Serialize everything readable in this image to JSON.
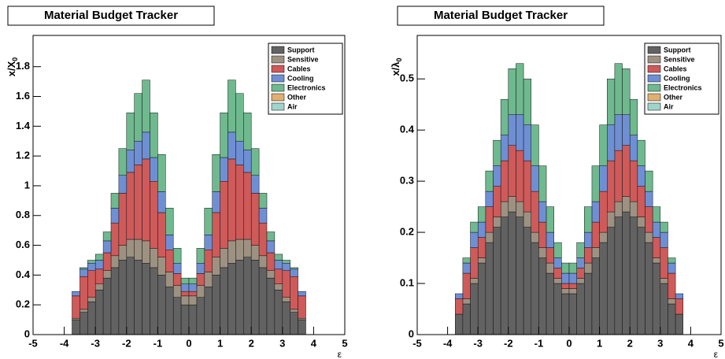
{
  "chart_data": [
    {
      "type": "histogram",
      "title": "Material Budget Tracker",
      "ylabel": "x/X",
      "ylabel_sub": "0",
      "xlabel": "ε",
      "bins": [
        -5,
        -4.75,
        -4.5,
        -4.25,
        -4,
        -3.75,
        -3.5,
        -3.25,
        -3,
        -2.75,
        -2.5,
        -2.25,
        -2,
        -1.75,
        -1.5,
        -1.25,
        -1,
        -0.75,
        -0.5,
        -0.25,
        0,
        0.25,
        0.5,
        0.75,
        1,
        1.25,
        1.5,
        1.75,
        2,
        2.25,
        2.5,
        2.75,
        3,
        3.25,
        3.5,
        3.75,
        4,
        4.25,
        4.5,
        4.75,
        5
      ],
      "xlim": [
        -5,
        5
      ],
      "xticks": [
        -5,
        -4,
        -3,
        -2,
        -1,
        0,
        1,
        2,
        3,
        4,
        5
      ],
      "ylim": [
        0,
        2.01
      ],
      "yticks": [
        0,
        0.2,
        0.4,
        0.6,
        0.8,
        1,
        1.2,
        1.4,
        1.6,
        1.8
      ],
      "stacked": true,
      "legend": "upper right",
      "series": [
        {
          "name": "Support",
          "color": "#626262",
          "values": [
            0,
            0,
            0,
            0,
            0,
            0.1,
            0.15,
            0.22,
            0.3,
            0.38,
            0.45,
            0.5,
            0.52,
            0.5,
            0.48,
            0.45,
            0.4,
            0.32,
            0.25,
            0.2,
            0.2,
            0.25,
            0.32,
            0.4,
            0.45,
            0.48,
            0.5,
            0.52,
            0.5,
            0.45,
            0.38,
            0.3,
            0.22,
            0.15,
            0.1,
            0,
            0,
            0,
            0,
            0
          ]
        },
        {
          "name": "Sensitive",
          "color": "#9d9282",
          "values": [
            0,
            0,
            0,
            0,
            0,
            0.01,
            0.02,
            0.03,
            0.04,
            0.05,
            0.08,
            0.1,
            0.12,
            0.14,
            0.15,
            0.13,
            0.12,
            0.1,
            0.08,
            0.06,
            0.06,
            0.08,
            0.1,
            0.12,
            0.13,
            0.15,
            0.14,
            0.12,
            0.1,
            0.08,
            0.05,
            0.04,
            0.03,
            0.02,
            0.01,
            0,
            0,
            0,
            0,
            0
          ]
        },
        {
          "name": "Cables",
          "color": "#cf5a5a",
          "values": [
            0,
            0,
            0,
            0,
            0,
            0.15,
            0.22,
            0.18,
            0.1,
            0.12,
            0.22,
            0.35,
            0.45,
            0.5,
            0.55,
            0.45,
            0.3,
            0.15,
            0.08,
            0.03,
            0.03,
            0.08,
            0.15,
            0.3,
            0.45,
            0.55,
            0.5,
            0.45,
            0.35,
            0.22,
            0.12,
            0.1,
            0.18,
            0.22,
            0.15,
            0,
            0,
            0,
            0,
            0
          ]
        },
        {
          "name": "Cooling",
          "color": "#6f8fd4",
          "values": [
            0,
            0,
            0,
            0,
            0,
            0.03,
            0.05,
            0.05,
            0.06,
            0.08,
            0.1,
            0.12,
            0.15,
            0.16,
            0.18,
            0.16,
            0.14,
            0.1,
            0.07,
            0.05,
            0.05,
            0.07,
            0.1,
            0.14,
            0.16,
            0.18,
            0.16,
            0.15,
            0.12,
            0.1,
            0.08,
            0.06,
            0.05,
            0.05,
            0.03,
            0,
            0,
            0,
            0,
            0
          ]
        },
        {
          "name": "Electronics",
          "color": "#6fb98f",
          "values": [
            0,
            0,
            0,
            0,
            0,
            0,
            0.01,
            0.02,
            0.04,
            0.06,
            0.1,
            0.18,
            0.25,
            0.32,
            0.35,
            0.3,
            0.25,
            0.18,
            0.1,
            0.04,
            0.04,
            0.1,
            0.18,
            0.25,
            0.3,
            0.35,
            0.32,
            0.25,
            0.18,
            0.1,
            0.06,
            0.04,
            0.02,
            0.01,
            0,
            0,
            0,
            0,
            0,
            0
          ]
        },
        {
          "name": "Other",
          "color": "#e0b070",
          "values": [
            0,
            0,
            0,
            0,
            0,
            0,
            0,
            0,
            0,
            0,
            0,
            0,
            0,
            0,
            0,
            0,
            0,
            0,
            0,
            0,
            0,
            0,
            0,
            0,
            0,
            0,
            0,
            0,
            0,
            0,
            0,
            0,
            0,
            0,
            0,
            0,
            0,
            0,
            0,
            0
          ]
        },
        {
          "name": "Air",
          "color": "#a0d4c8",
          "values": [
            0,
            0,
            0,
            0,
            0,
            0,
            0,
            0,
            0,
            0,
            0,
            0,
            0,
            0,
            0,
            0,
            0,
            0,
            0,
            0,
            0,
            0,
            0,
            0,
            0,
            0,
            0,
            0,
            0,
            0,
            0,
            0,
            0,
            0,
            0,
            0,
            0,
            0,
            0,
            0
          ]
        }
      ]
    },
    {
      "type": "histogram",
      "title": "Material Budget Tracker",
      "ylabel": "x/λ",
      "ylabel_sub": "0",
      "xlabel": "ε",
      "bins": [
        -5,
        -4.75,
        -4.5,
        -4.25,
        -4,
        -3.75,
        -3.5,
        -3.25,
        -3,
        -2.75,
        -2.5,
        -2.25,
        -2,
        -1.75,
        -1.5,
        -1.25,
        -1,
        -0.75,
        -0.5,
        -0.25,
        0,
        0.25,
        0.5,
        0.75,
        1,
        1.25,
        1.5,
        1.75,
        2,
        2.25,
        2.5,
        2.75,
        3,
        3.25,
        3.5,
        3.75,
        4,
        4.25,
        4.5,
        4.75,
        5
      ],
      "xlim": [
        -5,
        5
      ],
      "xticks": [
        -5,
        -4,
        -3,
        -2,
        -1,
        0,
        1,
        2,
        3,
        4,
        5
      ],
      "ylim": [
        0,
        0.585
      ],
      "yticks": [
        0,
        0.1,
        0.2,
        0.3,
        0.4,
        0.5
      ],
      "stacked": true,
      "legend": "upper right",
      "series": [
        {
          "name": "Support",
          "color": "#626262",
          "values": [
            0,
            0,
            0,
            0,
            0,
            0.04,
            0.06,
            0.1,
            0.14,
            0.18,
            0.21,
            0.23,
            0.24,
            0.23,
            0.21,
            0.18,
            0.15,
            0.12,
            0.1,
            0.08,
            0.08,
            0.1,
            0.12,
            0.15,
            0.18,
            0.21,
            0.23,
            0.24,
            0.23,
            0.21,
            0.18,
            0.14,
            0.1,
            0.06,
            0.04,
            0,
            0,
            0,
            0,
            0
          ]
        },
        {
          "name": "Sensitive",
          "color": "#9d9282",
          "values": [
            0,
            0,
            0,
            0,
            0,
            0,
            0.01,
            0.01,
            0.01,
            0.02,
            0.02,
            0.03,
            0.03,
            0.03,
            0.03,
            0.02,
            0.02,
            0.02,
            0.01,
            0.01,
            0.01,
            0.01,
            0.02,
            0.02,
            0.02,
            0.03,
            0.03,
            0.03,
            0.03,
            0.02,
            0.02,
            0.01,
            0.01,
            0.01,
            0,
            0,
            0,
            0,
            0,
            0
          ]
        },
        {
          "name": "Cables",
          "color": "#cf5a5a",
          "values": [
            0,
            0,
            0,
            0,
            0,
            0.03,
            0.05,
            0.06,
            0.04,
            0.05,
            0.06,
            0.08,
            0.1,
            0.1,
            0.1,
            0.08,
            0.05,
            0.03,
            0.02,
            0.01,
            0.01,
            0.02,
            0.03,
            0.05,
            0.08,
            0.1,
            0.1,
            0.1,
            0.08,
            0.06,
            0.05,
            0.04,
            0.06,
            0.05,
            0.03,
            0,
            0,
            0,
            0,
            0
          ]
        },
        {
          "name": "Cooling",
          "color": "#6f8fd4",
          "values": [
            0,
            0,
            0,
            0,
            0,
            0.01,
            0.02,
            0.03,
            0.03,
            0.03,
            0.04,
            0.05,
            0.06,
            0.07,
            0.07,
            0.05,
            0.04,
            0.03,
            0.02,
            0.02,
            0.02,
            0.02,
            0.03,
            0.04,
            0.05,
            0.07,
            0.07,
            0.06,
            0.05,
            0.04,
            0.03,
            0.03,
            0.03,
            0.02,
            0.01,
            0,
            0,
            0,
            0,
            0
          ]
        },
        {
          "name": "Electronics",
          "color": "#6fb98f",
          "values": [
            0,
            0,
            0,
            0,
            0,
            0,
            0.01,
            0.02,
            0.03,
            0.04,
            0.05,
            0.07,
            0.09,
            0.1,
            0.09,
            0.08,
            0.07,
            0.05,
            0.03,
            0.02,
            0.02,
            0.03,
            0.05,
            0.07,
            0.08,
            0.09,
            0.1,
            0.09,
            0.07,
            0.05,
            0.04,
            0.03,
            0.02,
            0.01,
            0,
            0,
            0,
            0,
            0,
            0
          ]
        },
        {
          "name": "Other",
          "color": "#e0b070",
          "values": [
            0,
            0,
            0,
            0,
            0,
            0,
            0,
            0,
            0,
            0,
            0,
            0,
            0,
            0,
            0,
            0,
            0,
            0,
            0,
            0,
            0,
            0,
            0,
            0,
            0,
            0,
            0,
            0,
            0,
            0,
            0,
            0,
            0,
            0,
            0,
            0,
            0,
            0,
            0,
            0
          ]
        },
        {
          "name": "Air",
          "color": "#a0d4c8",
          "values": [
            0,
            0,
            0,
            0,
            0,
            0,
            0,
            0,
            0,
            0,
            0,
            0,
            0,
            0,
            0,
            0,
            0,
            0,
            0,
            0,
            0,
            0,
            0,
            0,
            0,
            0,
            0,
            0,
            0,
            0,
            0,
            0,
            0,
            0,
            0,
            0,
            0,
            0,
            0,
            0
          ]
        }
      ]
    }
  ]
}
